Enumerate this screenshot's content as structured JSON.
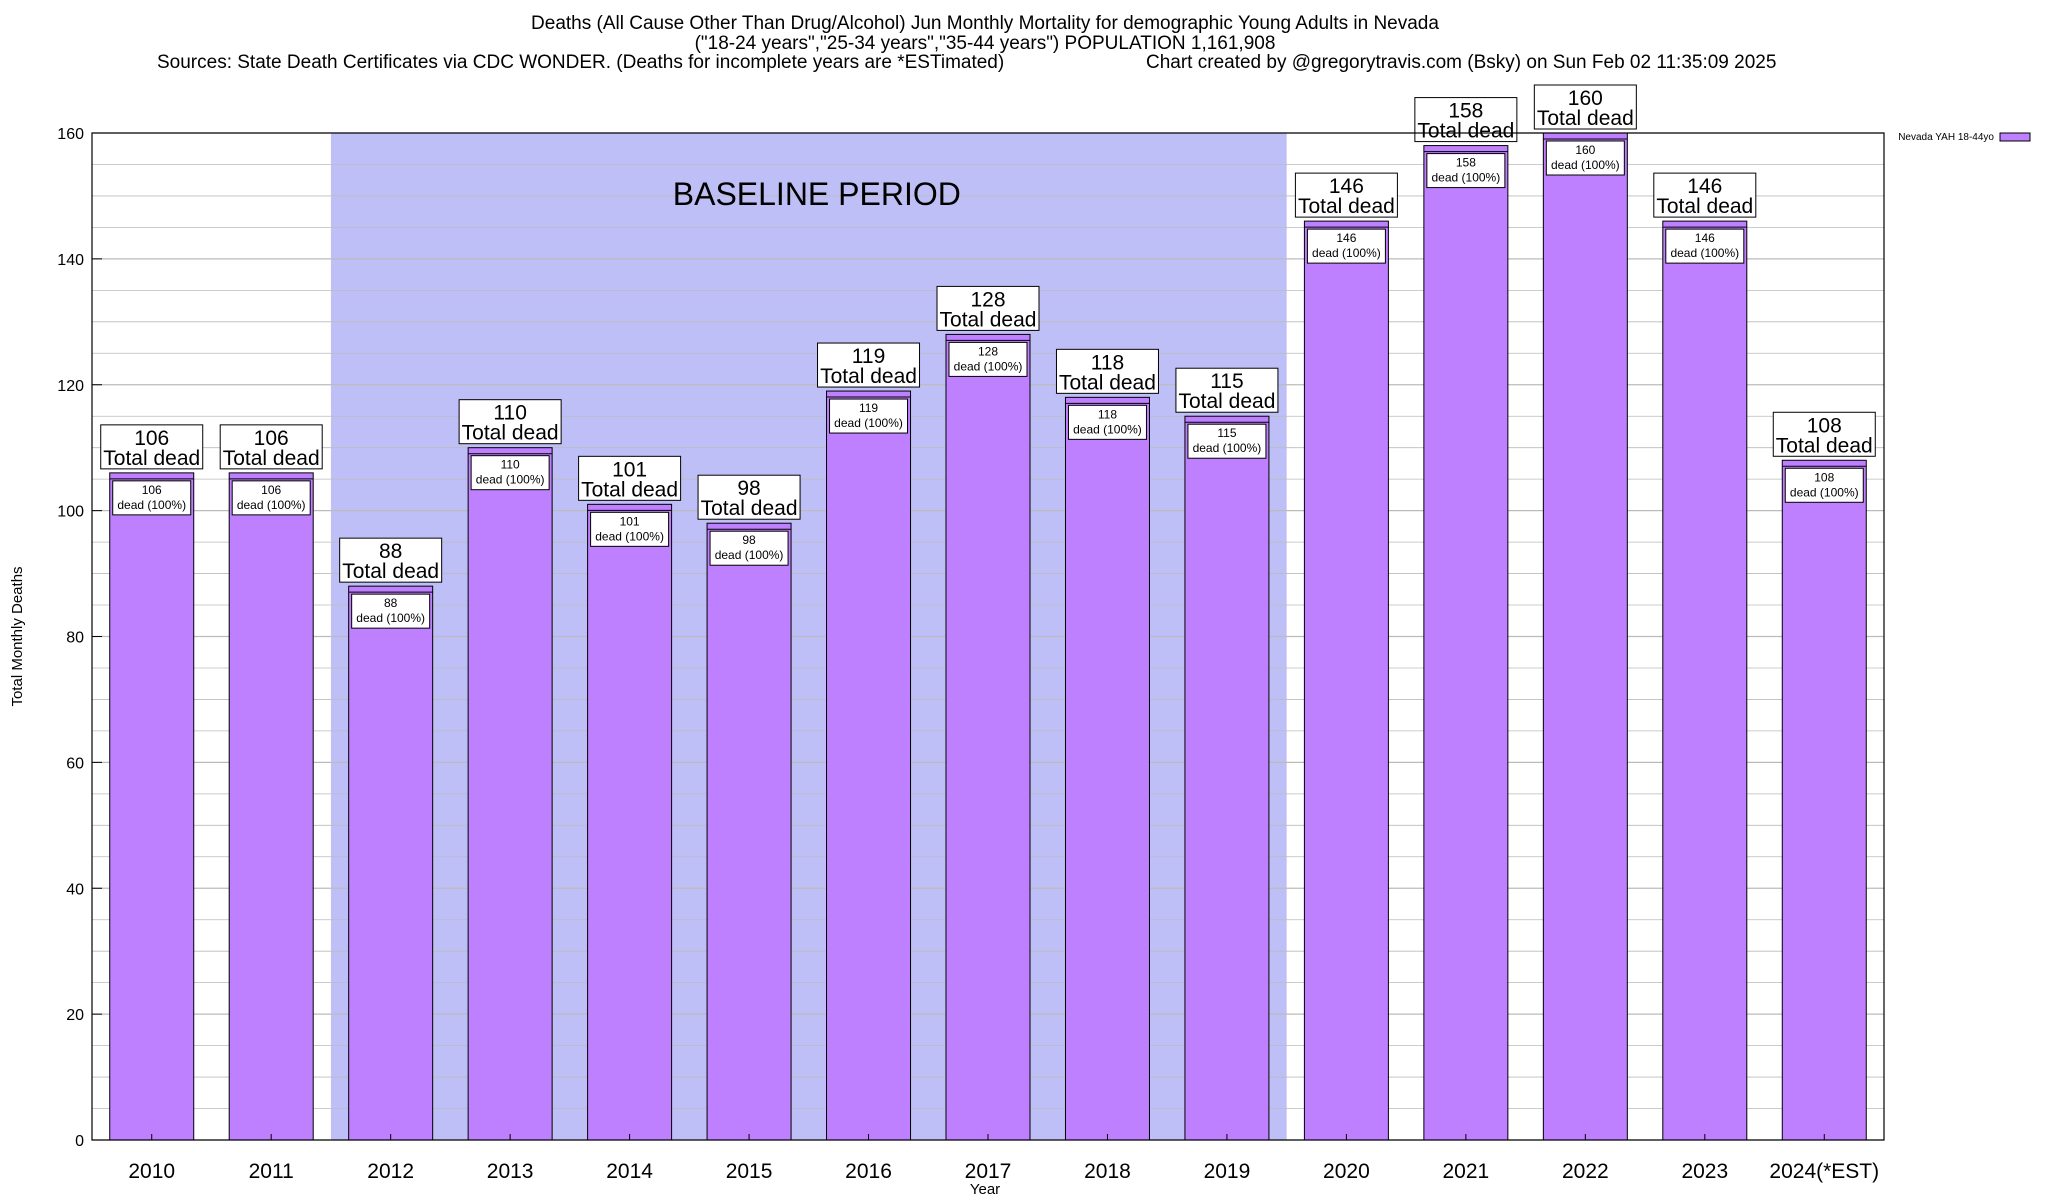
{
  "header": {
    "title_line1": "Deaths (All Cause Other Than Drug/Alcohol) Jun Monthly Mortality for demographic Young Adults in Nevada",
    "title_line2": "(\"18-24 years\",\"25-34 years\",\"35-44 years\") POPULATION 1,161,908",
    "sources": "Sources: State Death Certificates via CDC WONDER. (Deaths for incomplete years are *ESTimated)",
    "credit": "Chart created by @gregorytravis.com (Bsky) on Sun Feb 02 11:35:09 2025"
  },
  "colors": {
    "bar": "#bf80ff",
    "baseline": "#bfbff8",
    "grid": "#bbbbbb"
  },
  "chart_data": {
    "type": "bar",
    "categories": [
      "2010",
      "2011",
      "2012",
      "2013",
      "2014",
      "2015",
      "2016",
      "2017",
      "2018",
      "2019",
      "2020",
      "2021",
      "2022",
      "2023",
      "2024(*EST)"
    ],
    "series": [
      {
        "name": "Nevada YAH 18-44yo",
        "values": [
          106,
          106,
          88,
          110,
          101,
          98,
          119,
          128,
          118,
          115,
          146,
          158,
          160,
          146,
          108
        ]
      }
    ],
    "total_label_suffix": "Total dead",
    "inner_label_suffix": "dead (100%)",
    "xlabel": "Year",
    "ylabel": "Total Monthly Deaths",
    "ylim": [
      0,
      160
    ],
    "yticks": [
      0,
      20,
      40,
      60,
      80,
      100,
      120,
      140,
      160
    ],
    "minor_step": 5,
    "grid": true,
    "legend_position": "top-right",
    "baseline_period": {
      "label": "BASELINE PERIOD",
      "start": "2012",
      "end": "2019"
    }
  }
}
